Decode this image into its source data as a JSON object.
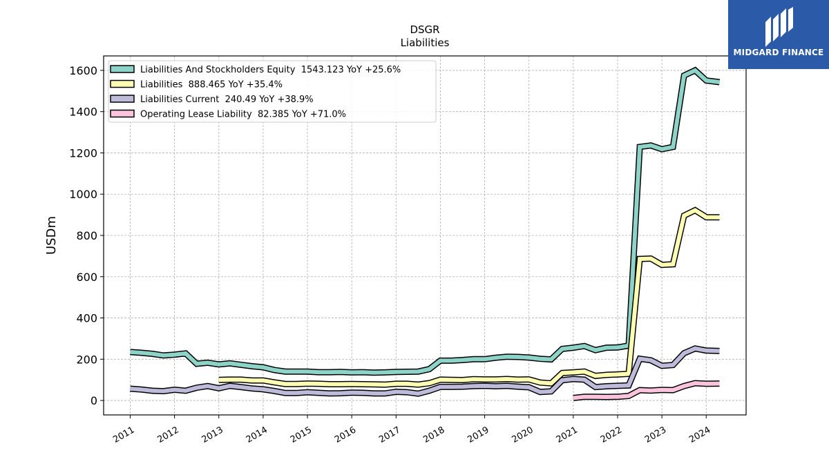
{
  "logo": {
    "text": "MIDGARD FINANCE",
    "icon": "midgard-finance-logo-icon",
    "color": "#2b5aa8"
  },
  "chart_data": {
    "type": "line",
    "title": "DSGR",
    "subtitle": "Liabilities",
    "xlabel": "",
    "ylabel": "USDm",
    "xlim": [
      2010.4,
      2024.9
    ],
    "ylim": [
      -70,
      1670
    ],
    "x_ticks": [
      "2011",
      "2012",
      "2013",
      "2014",
      "2015",
      "2016",
      "2017",
      "2018",
      "2019",
      "2020",
      "2021",
      "2022",
      "2023",
      "2024"
    ],
    "y_ticks": [
      0,
      200,
      400,
      600,
      800,
      1000,
      1200,
      1400,
      1600
    ],
    "grid": true,
    "legend_position": "top-left",
    "series": [
      {
        "name": "Liabilities And Stockholders Equity  1543.123 YoY +25.6%",
        "color": "#8dd3c7",
        "points": [
          [
            2011.0,
            235
          ],
          [
            2011.25,
            231
          ],
          [
            2011.5,
            226
          ],
          [
            2011.75,
            218
          ],
          [
            2012.0,
            222
          ],
          [
            2012.25,
            228
          ],
          [
            2012.5,
            178
          ],
          [
            2012.75,
            183
          ],
          [
            2013.0,
            175
          ],
          [
            2013.25,
            180
          ],
          [
            2013.5,
            173
          ],
          [
            2013.75,
            166
          ],
          [
            2014.0,
            161
          ],
          [
            2014.25,
            148
          ],
          [
            2014.5,
            140
          ],
          [
            2014.75,
            140
          ],
          [
            2015.0,
            140
          ],
          [
            2015.25,
            137
          ],
          [
            2015.5,
            137
          ],
          [
            2015.75,
            138
          ],
          [
            2016.0,
            136
          ],
          [
            2016.25,
            137
          ],
          [
            2016.5,
            135
          ],
          [
            2016.75,
            136
          ],
          [
            2017.0,
            138
          ],
          [
            2017.25,
            139
          ],
          [
            2017.5,
            140
          ],
          [
            2017.75,
            152
          ],
          [
            2018.0,
            193
          ],
          [
            2018.25,
            193
          ],
          [
            2018.5,
            196
          ],
          [
            2018.75,
            200
          ],
          [
            2019.0,
            200
          ],
          [
            2019.25,
            207
          ],
          [
            2019.5,
            212
          ],
          [
            2019.75,
            211
          ],
          [
            2020.0,
            208
          ],
          [
            2020.25,
            202
          ],
          [
            2020.5,
            199
          ],
          [
            2020.75,
            250
          ],
          [
            2021.0,
            256
          ],
          [
            2021.25,
            264
          ],
          [
            2021.5,
            244
          ],
          [
            2021.75,
            256
          ],
          [
            2022.0,
            257
          ],
          [
            2022.25,
            266
          ],
          [
            2022.5,
            1229
          ],
          [
            2022.75,
            1236
          ],
          [
            2023.0,
            1218
          ],
          [
            2023.25,
            1229
          ],
          [
            2023.5,
            1575
          ],
          [
            2023.75,
            1600
          ],
          [
            2024.0,
            1551
          ],
          [
            2024.3,
            1543
          ]
        ]
      },
      {
        "name": "Liabilities  888.465 YoY +35.4%",
        "color": "#ffffb3",
        "points": [
          [
            2013.0,
            100
          ],
          [
            2013.25,
            101
          ],
          [
            2013.5,
            101
          ],
          [
            2013.75,
            97
          ],
          [
            2014.0,
            97
          ],
          [
            2014.25,
            88
          ],
          [
            2014.5,
            80
          ],
          [
            2014.75,
            80
          ],
          [
            2015.0,
            82
          ],
          [
            2015.25,
            81
          ],
          [
            2015.5,
            79
          ],
          [
            2015.75,
            79
          ],
          [
            2016.0,
            80
          ],
          [
            2016.25,
            79
          ],
          [
            2016.5,
            78
          ],
          [
            2016.75,
            77
          ],
          [
            2017.0,
            81
          ],
          [
            2017.25,
            81
          ],
          [
            2017.5,
            77
          ],
          [
            2017.75,
            84
          ],
          [
            2018.0,
            101
          ],
          [
            2018.25,
            100
          ],
          [
            2018.5,
            99
          ],
          [
            2018.75,
            103
          ],
          [
            2019.0,
            102
          ],
          [
            2019.25,
            102
          ],
          [
            2019.5,
            104
          ],
          [
            2019.75,
            101
          ],
          [
            2020.0,
            102
          ],
          [
            2020.25,
            87
          ],
          [
            2020.5,
            83
          ],
          [
            2020.75,
            133
          ],
          [
            2021.0,
            136
          ],
          [
            2021.25,
            140
          ],
          [
            2021.5,
            119
          ],
          [
            2021.75,
            124
          ],
          [
            2022.0,
            126
          ],
          [
            2022.25,
            129
          ],
          [
            2022.5,
            686
          ],
          [
            2022.75,
            688
          ],
          [
            2023.0,
            657
          ],
          [
            2023.25,
            660
          ],
          [
            2023.5,
            896
          ],
          [
            2023.75,
            922
          ],
          [
            2024.0,
            888
          ],
          [
            2024.3,
            888
          ]
        ]
      },
      {
        "name": "Liabilities Current  240.49 YoY +38.9%",
        "color": "#bebada",
        "points": [
          [
            2011.0,
            57
          ],
          [
            2011.25,
            53
          ],
          [
            2011.5,
            47
          ],
          [
            2011.75,
            45
          ],
          [
            2012.0,
            52
          ],
          [
            2012.25,
            47
          ],
          [
            2012.5,
            62
          ],
          [
            2012.75,
            70
          ],
          [
            2013.0,
            59
          ],
          [
            2013.25,
            71
          ],
          [
            2013.5,
            65
          ],
          [
            2013.75,
            58
          ],
          [
            2014.0,
            54
          ],
          [
            2014.25,
            46
          ],
          [
            2014.5,
            36
          ],
          [
            2014.75,
            36
          ],
          [
            2015.0,
            40
          ],
          [
            2015.25,
            37
          ],
          [
            2015.5,
            34
          ],
          [
            2015.75,
            35
          ],
          [
            2016.0,
            38
          ],
          [
            2016.25,
            37
          ],
          [
            2016.5,
            34
          ],
          [
            2016.75,
            34
          ],
          [
            2017.0,
            42
          ],
          [
            2017.25,
            40
          ],
          [
            2017.5,
            33
          ],
          [
            2017.75,
            47
          ],
          [
            2018.0,
            66
          ],
          [
            2018.25,
            66
          ],
          [
            2018.5,
            67
          ],
          [
            2018.75,
            70
          ],
          [
            2019.0,
            71
          ],
          [
            2019.25,
            69
          ],
          [
            2019.5,
            71
          ],
          [
            2019.75,
            67
          ],
          [
            2020.0,
            64
          ],
          [
            2020.25,
            41
          ],
          [
            2020.5,
            44
          ],
          [
            2020.75,
            98
          ],
          [
            2021.0,
            104
          ],
          [
            2021.25,
            101
          ],
          [
            2021.5,
            65
          ],
          [
            2021.75,
            69
          ],
          [
            2022.0,
            71
          ],
          [
            2022.25,
            73
          ],
          [
            2022.5,
            202
          ],
          [
            2022.75,
            195
          ],
          [
            2023.0,
            168
          ],
          [
            2023.25,
            172
          ],
          [
            2023.5,
            229
          ],
          [
            2023.75,
            252
          ],
          [
            2024.0,
            242
          ],
          [
            2024.3,
            240
          ]
        ]
      },
      {
        "name": "Operating Lease Liability  82.385 YoY +71.0%",
        "color": "#fbc4dc",
        "points": [
          [
            2021.0,
            12
          ],
          [
            2021.25,
            18
          ],
          [
            2021.5,
            18
          ],
          [
            2021.75,
            17
          ],
          [
            2022.0,
            18
          ],
          [
            2022.25,
            22
          ],
          [
            2022.5,
            50
          ],
          [
            2022.75,
            48
          ],
          [
            2023.0,
            51
          ],
          [
            2023.25,
            50
          ],
          [
            2023.5,
            70
          ],
          [
            2023.75,
            84
          ],
          [
            2024.0,
            81
          ],
          [
            2024.3,
            82
          ]
        ]
      }
    ]
  }
}
